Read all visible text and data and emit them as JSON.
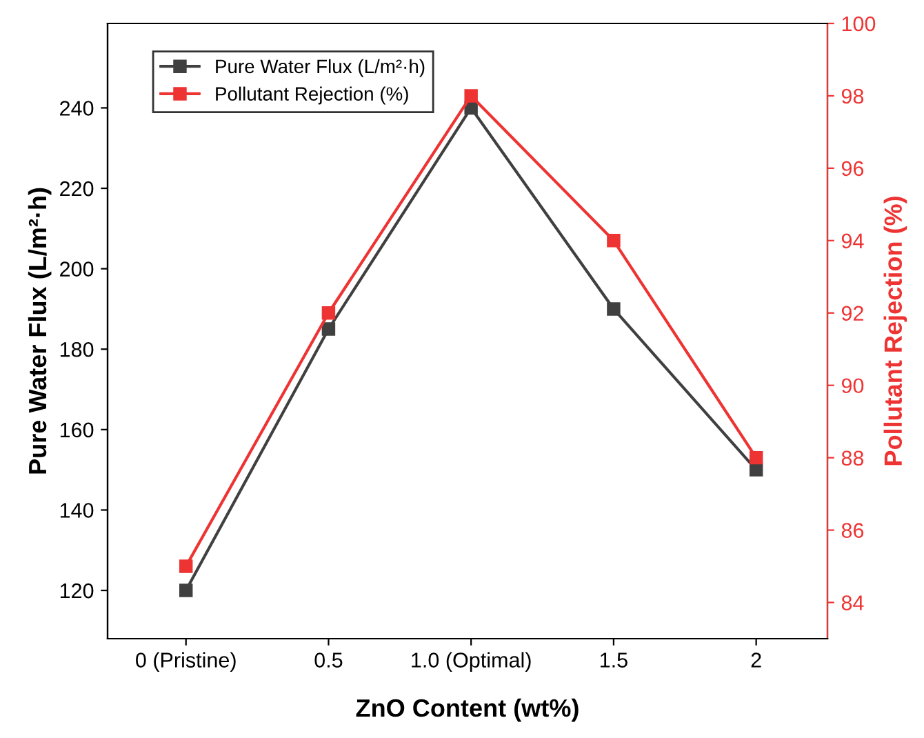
{
  "chart_data": {
    "type": "line",
    "xlabel": "ZnO Content (wt%)",
    "ylabel": "Pure Water Flux (L/m²·h)",
    "y2label": "Pollutant Rejection (%)",
    "categories": [
      "0 (Pristine)",
      "0.5",
      "1.0 (Optimal)",
      "1.5",
      "2"
    ],
    "series": [
      {
        "name": "Pure Water Flux (L/m²·h)",
        "color": "#404040",
        "values": [
          120,
          185,
          240,
          190,
          150
        ]
      },
      {
        "name": "Pollutant Rejection (%)",
        "color": "#ee3333",
        "axis": "y2",
        "values": [
          85,
          92,
          98,
          94,
          88
        ]
      }
    ],
    "ylim": [
      108,
      261
    ],
    "yticks": [
      120,
      140,
      160,
      180,
      200,
      220,
      240
    ],
    "y2lim": [
      83,
      100
    ],
    "y2ticks": [
      84,
      86,
      88,
      90,
      92,
      94,
      96,
      98,
      100
    ],
    "marker": "square",
    "line_style": "solid",
    "legend": "top left",
    "grid": false
  }
}
